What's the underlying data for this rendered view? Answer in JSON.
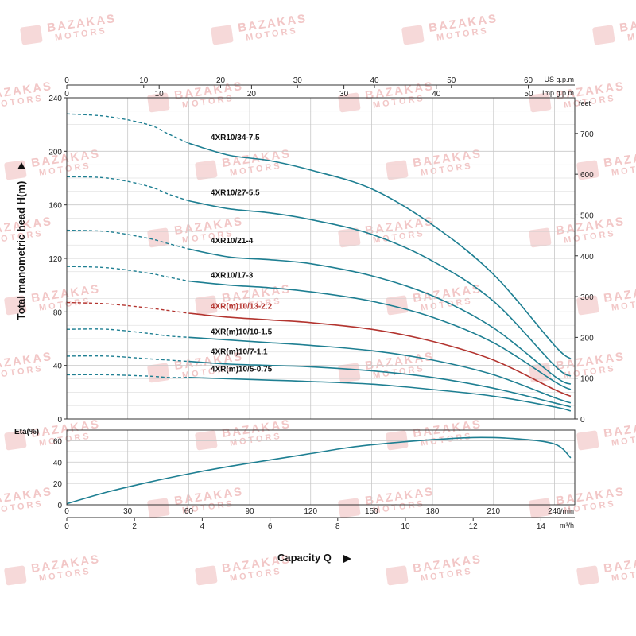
{
  "watermark": {
    "line1": "BAZAKAS",
    "line2": "MOTORS"
  },
  "chart_data": [
    {
      "type": "line",
      "ylabel": "Total manometric head H(m)",
      "ylim": [
        0,
        240
      ],
      "yticks": [
        0,
        40,
        80,
        120,
        160,
        200,
        240
      ],
      "xlim": [
        0,
        250
      ],
      "right_axis": {
        "unit": "feet",
        "ticks": [
          0,
          100,
          200,
          300,
          400,
          500,
          600,
          700
        ]
      },
      "top_axis_us": {
        "unit": "US g.p.m",
        "ticks": [
          0,
          10,
          20,
          30,
          40,
          50,
          60
        ]
      },
      "top_axis_imp": {
        "unit": "Imp g.p.m",
        "ticks": [
          0,
          10,
          20,
          30,
          40,
          50
        ]
      },
      "grid": true,
      "colors": {
        "normal": "#1e7f92",
        "highlight": "#b3342f",
        "grid": "#c8c8c8"
      },
      "series": [
        {
          "name": "4XR10/34-7.5",
          "highlight": false,
          "label_at": [
            70,
            206
          ],
          "points": [
            [
              0,
              228
            ],
            [
              20,
              226
            ],
            [
              40,
              220
            ],
            [
              50,
              213
            ],
            [
              60,
              206
            ],
            [
              80,
              197
            ],
            [
              100,
              193
            ],
            [
              120,
              186
            ],
            [
              150,
              172
            ],
            [
              180,
              145
            ],
            [
              210,
              108
            ],
            [
              240,
              55
            ],
            [
              248,
              45
            ]
          ]
        },
        {
          "name": "4XR10/27-5.5",
          "highlight": false,
          "label_at": [
            70,
            165
          ],
          "points": [
            [
              0,
              181
            ],
            [
              20,
              180
            ],
            [
              40,
              174
            ],
            [
              50,
              168
            ],
            [
              60,
              163
            ],
            [
              80,
              157
            ],
            [
              100,
              154
            ],
            [
              120,
              149
            ],
            [
              150,
              138
            ],
            [
              180,
              118
            ],
            [
              210,
              88
            ],
            [
              240,
              40
            ],
            [
              248,
              32
            ]
          ]
        },
        {
          "name": "4XR10/21-4",
          "highlight": false,
          "label_at": [
            70,
            129
          ],
          "points": [
            [
              0,
              141
            ],
            [
              20,
              140
            ],
            [
              40,
              135
            ],
            [
              50,
              131
            ],
            [
              60,
              127
            ],
            [
              80,
              121
            ],
            [
              100,
              119
            ],
            [
              120,
              116
            ],
            [
              150,
              107
            ],
            [
              180,
              92
            ],
            [
              210,
              68
            ],
            [
              240,
              32
            ],
            [
              248,
              26
            ]
          ]
        },
        {
          "name": "4XR10/17-3",
          "highlight": false,
          "label_at": [
            70,
            103
          ],
          "points": [
            [
              0,
              114
            ],
            [
              20,
              113
            ],
            [
              40,
              109
            ],
            [
              50,
              106
            ],
            [
              60,
              103
            ],
            [
              80,
              100
            ],
            [
              100,
              98
            ],
            [
              120,
              95
            ],
            [
              150,
              88
            ],
            [
              180,
              76
            ],
            [
              210,
              57
            ],
            [
              240,
              28
            ],
            [
              248,
              22
            ]
          ]
        },
        {
          "name": "4XR(m)10/13-2.2",
          "highlight": true,
          "label_at": [
            70,
            80
          ],
          "points": [
            [
              0,
              87
            ],
            [
              20,
              86
            ],
            [
              40,
              83
            ],
            [
              50,
              81
            ],
            [
              60,
              79
            ],
            [
              80,
              76
            ],
            [
              100,
              74
            ],
            [
              120,
              72
            ],
            [
              150,
              67
            ],
            [
              180,
              58
            ],
            [
              210,
              44
            ],
            [
              240,
              22
            ],
            [
              248,
              17
            ]
          ]
        },
        {
          "name": "4XR(m)10/10-1.5",
          "highlight": false,
          "label_at": [
            70,
            61
          ],
          "points": [
            [
              0,
              67
            ],
            [
              20,
              67
            ],
            [
              40,
              64
            ],
            [
              50,
              62
            ],
            [
              60,
              61
            ],
            [
              80,
              59
            ],
            [
              100,
              57
            ],
            [
              120,
              55
            ],
            [
              150,
              51
            ],
            [
              180,
              44
            ],
            [
              210,
              33
            ],
            [
              240,
              16
            ],
            [
              248,
              12
            ]
          ]
        },
        {
          "name": "4XR(m)10/7-1.1",
          "highlight": false,
          "label_at": [
            70,
            46
          ],
          "points": [
            [
              0,
              47
            ],
            [
              20,
              47
            ],
            [
              40,
              45
            ],
            [
              50,
              44
            ],
            [
              60,
              43
            ],
            [
              80,
              41
            ],
            [
              100,
              40
            ],
            [
              120,
              39
            ],
            [
              150,
              36
            ],
            [
              180,
              31
            ],
            [
              210,
              23
            ],
            [
              240,
              12
            ],
            [
              248,
              9
            ]
          ]
        },
        {
          "name": "4XR(m)10/5-0.75",
          "highlight": false,
          "label_at": [
            70,
            33
          ],
          "points": [
            [
              0,
              33
            ],
            [
              20,
              33
            ],
            [
              40,
              32
            ],
            [
              50,
              31
            ],
            [
              60,
              31
            ],
            [
              80,
              30
            ],
            [
              100,
              29
            ],
            [
              120,
              28
            ],
            [
              150,
              26
            ],
            [
              180,
              22
            ],
            [
              210,
              17
            ],
            [
              240,
              9
            ],
            [
              248,
              6
            ]
          ]
        }
      ]
    },
    {
      "type": "line",
      "ylabel": "Eta(%)",
      "ylim": [
        0,
        70
      ],
      "yticks": [
        0,
        20,
        40,
        60
      ],
      "xlim": [
        0,
        250
      ],
      "xlabel": "Capacity Q",
      "x_axis_lmin": {
        "unit": "l/min",
        "ticks": [
          0,
          30,
          60,
          90,
          120,
          150,
          180,
          210,
          240
        ]
      },
      "x_axis_m3h": {
        "unit": "m³/h",
        "ticks": [
          0,
          2,
          4,
          6,
          8,
          10,
          12,
          14
        ]
      },
      "grid": true,
      "series": [
        {
          "points": [
            [
              0,
              1
            ],
            [
              20,
              12
            ],
            [
              40,
              21
            ],
            [
              60,
              29
            ],
            [
              80,
              36
            ],
            [
              100,
              42
            ],
            [
              120,
              48
            ],
            [
              140,
              54
            ],
            [
              160,
              58
            ],
            [
              180,
              61
            ],
            [
              200,
              63
            ],
            [
              220,
              62
            ],
            [
              240,
              57
            ],
            [
              248,
              44
            ]
          ]
        }
      ]
    }
  ]
}
